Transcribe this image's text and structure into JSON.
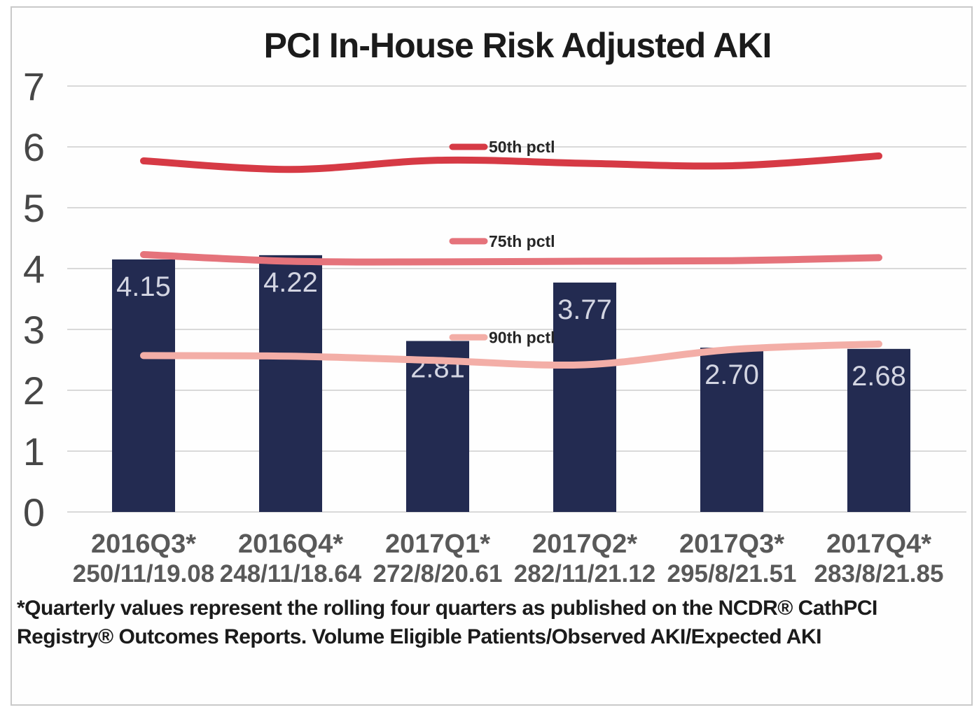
{
  "title": "PCI In-House Risk Adjusted AKI",
  "footnote": "*Quarterly values represent the rolling four quarters as published on the NCDR® CathPCI Registry® Outcomes Reports. Volume Eligible Patients/Observed AKI/Expected AKI",
  "colors": {
    "bar": "#232b51",
    "bar_label": "#d3d5e2",
    "p50": "#d63a45",
    "p75": "#e5737b",
    "p90": "#f3aea7",
    "grid": "#d9d9d9",
    "axis_y": "#474747",
    "axis_x": "#595959",
    "series_label_text": "#262626",
    "frame_border": "#c9c9c9"
  },
  "chart_data": {
    "type": "bar",
    "title": "PCI In-House Risk Adjusted AKI",
    "categories": [
      "2016Q3*",
      "2016Q4*",
      "2017Q1*",
      "2017Q2*",
      "2017Q3*",
      "2017Q4*"
    ],
    "category_sublabels": [
      "250/11/19.08",
      "248/11/18.64",
      "272/8/20.61",
      "282/11/21.12",
      "295/8/21.51",
      "283/8/21.85"
    ],
    "bar_series": {
      "name": "PCI In-House Risk Adjusted AKI",
      "values": [
        4.15,
        4.22,
        2.81,
        3.77,
        2.7,
        2.68
      ]
    },
    "bar_labels": [
      "4.15",
      "4.22",
      "2.81",
      "3.77",
      "2.70",
      "2.68"
    ],
    "line_series": [
      {
        "name": "50th pctl",
        "color_key": "p50",
        "values": [
          5.77,
          5.63,
          5.78,
          5.73,
          5.69,
          5.85
        ],
        "label_y_value": 6.0
      },
      {
        "name": "75th pctl",
        "color_key": "p75",
        "values": [
          4.23,
          4.12,
          4.11,
          4.12,
          4.13,
          4.18
        ],
        "label_y_value": 4.45
      },
      {
        "name": "90th pctl",
        "color_key": "p90",
        "values": [
          2.57,
          2.56,
          2.49,
          2.42,
          2.67,
          2.76
        ],
        "label_y_value": 2.87
      }
    ],
    "ylim": [
      0,
      7
    ],
    "yticks": [
      0,
      1,
      2,
      3,
      4,
      5,
      6,
      7
    ],
    "grid": true,
    "legend_position": "inline-labels"
  }
}
